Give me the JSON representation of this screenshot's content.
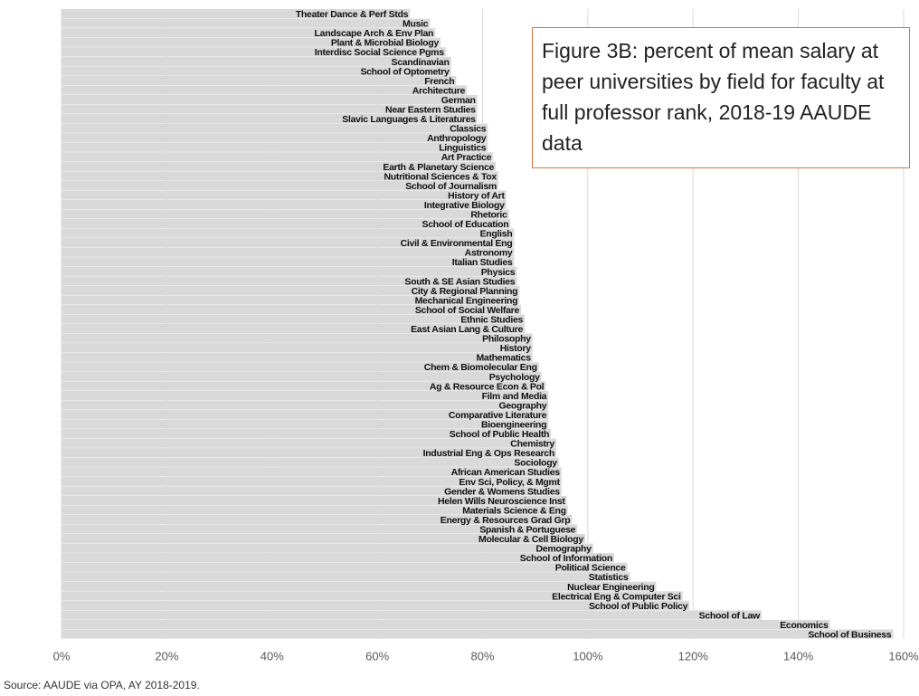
{
  "chart_data": {
    "type": "barh",
    "title": "Figure 3B: percent of mean salary at peer universities by field for faculty at full professor rank, 2018-19 AAUDE data",
    "source": "Source: AAUDE via OPA, AY 2018-2019.",
    "color": "#d9d9d9",
    "grid": true,
    "xlim": [
      0,
      160
    ],
    "xticks": [
      {
        "value": 0,
        "label": "0%"
      },
      {
        "value": 20,
        "label": "20%"
      },
      {
        "value": 40,
        "label": "40%"
      },
      {
        "value": 60,
        "label": "60%"
      },
      {
        "value": 80,
        "label": "80%"
      },
      {
        "value": 100,
        "label": "100%"
      },
      {
        "value": 120,
        "label": "120%"
      },
      {
        "value": 140,
        "label": "140%"
      },
      {
        "value": 160,
        "label": "160%"
      }
    ],
    "categories": [
      "Theater Dance & Perf Stds",
      "Music",
      "Landscape Arch & Env Plan",
      "Plant & Microbial Biology",
      "Interdisc Social Science Pgms",
      "Scandinavian",
      "School of Optometry",
      "French",
      "Architecture",
      "German",
      "Near Eastern Studies",
      "Slavic Languages & Literatures",
      "Classics",
      "Anthropology",
      "Linguistics",
      "Art Practice",
      "Earth & Planetary Science",
      "Nutritional Sciences & Tox",
      "School of Journalism",
      "History of Art",
      "Integrative Biology",
      "Rhetoric",
      "School of Education",
      "English",
      "Civil & Environmental Eng",
      "Astronomy",
      "Italian Studies",
      "Physics",
      "South & SE Asian Studies",
      "City & Regional Planning",
      "Mechanical Engineering",
      "School of Social Welfare",
      "Ethnic Studies",
      "East Asian Lang & Culture",
      "Philosophy",
      "History",
      "Mathematics",
      "Chem & Biomolecular Eng",
      "Psychology",
      "Ag & Resource Econ & Pol",
      "Film and Media",
      "Geography",
      "Comparative Literature",
      "Bioengineering",
      "School of Public Health",
      "Chemistry",
      "Industrial Eng & Ops Research",
      "Sociology",
      "African American Studies",
      "Env Sci, Policy, & Mgmt",
      "Gender & Womens Studies",
      "Helen Wills Neuroscience Inst",
      "Materials Science & Eng",
      "Energy & Resources Grad Grp",
      "Spanish & Portuguese",
      "Molecular & Cell Biology",
      "Demography",
      "School of Information",
      "Political Science",
      "Statistics",
      "Nuclear Engineering",
      "Electrical Eng & Computer Sci",
      "School of Public Policy",
      "School of Law",
      "Economics",
      "School of Business"
    ],
    "values": [
      66.2,
      70,
      71,
      72,
      73,
      74,
      74,
      75,
      77,
      79,
      79,
      79,
      81,
      81,
      81,
      82,
      82.5,
      83,
      83,
      84.5,
      84.5,
      85,
      85.3,
      86,
      86,
      86,
      86,
      86.5,
      86.5,
      87,
      87,
      87.3,
      88,
      88,
      89.5,
      89.5,
      89.5,
      90.7,
      91.2,
      92,
      92.5,
      92.5,
      92.5,
      92.5,
      93,
      94,
      94,
      94.5,
      95,
      95,
      95,
      96,
      96.2,
      97,
      98,
      99.5,
      101,
      105,
      107.5,
      108,
      113,
      118,
      119.3,
      133,
      146,
      158
    ]
  }
}
